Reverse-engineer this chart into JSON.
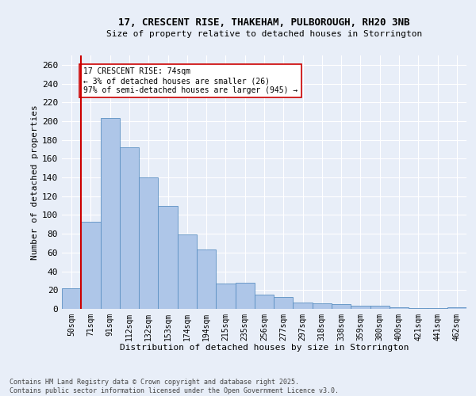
{
  "title1": "17, CRESCENT RISE, THAKEHAM, PULBOROUGH, RH20 3NB",
  "title2": "Size of property relative to detached houses in Storrington",
  "xlabel": "Distribution of detached houses by size in Storrington",
  "ylabel": "Number of detached properties",
  "categories": [
    "50sqm",
    "71sqm",
    "91sqm",
    "112sqm",
    "132sqm",
    "153sqm",
    "174sqm",
    "194sqm",
    "215sqm",
    "235sqm",
    "256sqm",
    "277sqm",
    "297sqm",
    "318sqm",
    "338sqm",
    "359sqm",
    "380sqm",
    "400sqm",
    "421sqm",
    "441sqm",
    "462sqm"
  ],
  "values": [
    22,
    93,
    203,
    172,
    140,
    110,
    79,
    63,
    27,
    28,
    15,
    13,
    7,
    6,
    5,
    3,
    3,
    2,
    1,
    1,
    2
  ],
  "bar_color": "#aec6e8",
  "bar_edge_color": "#5a8fc2",
  "vline_x": 0.5,
  "vline_color": "#cc0000",
  "annotation_text": "17 CRESCENT RISE: 74sqm\n← 3% of detached houses are smaller (26)\n97% of semi-detached houses are larger (945) →",
  "annotation_box_color": "white",
  "annotation_box_edge": "#cc0000",
  "footer": "Contains HM Land Registry data © Crown copyright and database right 2025.\nContains public sector information licensed under the Open Government Licence v3.0.",
  "ylim": [
    0,
    270
  ],
  "yticks": [
    0,
    20,
    40,
    60,
    80,
    100,
    120,
    140,
    160,
    180,
    200,
    220,
    240,
    260
  ],
  "bg_color": "#e8eef8",
  "grid_color": "#ffffff",
  "fig_width": 6.0,
  "fig_height": 5.0,
  "dpi": 100
}
